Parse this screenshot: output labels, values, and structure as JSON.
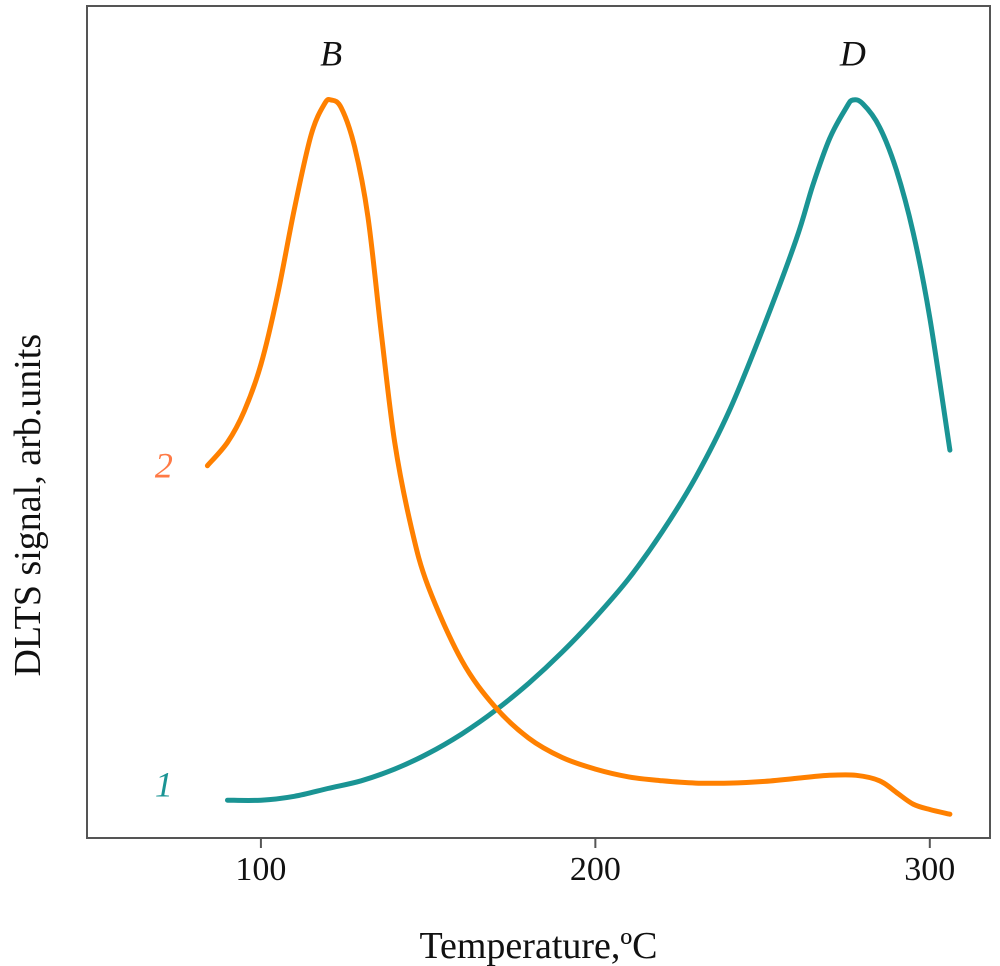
{
  "chart_data": {
    "type": "line",
    "xlabel": "Temperature,ºC",
    "ylabel": "DLTS signal, arb.units",
    "xlim": [
      48,
      318
    ],
    "ylim": [
      0,
      1.0
    ],
    "x_ticks": [
      100,
      200,
      300
    ],
    "y_ticks": [],
    "grid": false,
    "peak_labels": [
      {
        "text": "B",
        "x": 121,
        "y": 1.06
      },
      {
        "text": "D",
        "x": 277,
        "y": 1.06
      }
    ],
    "series": [
      {
        "name": "1",
        "color": "#1a9494",
        "label_pos": {
          "x": 71,
          "y": 0.12
        },
        "points": [
          [
            90,
            0.1
          ],
          [
            100,
            0.1
          ],
          [
            110,
            0.105
          ],
          [
            120,
            0.115
          ],
          [
            130,
            0.125
          ],
          [
            140,
            0.14
          ],
          [
            150,
            0.16
          ],
          [
            160,
            0.185
          ],
          [
            170,
            0.215
          ],
          [
            180,
            0.25
          ],
          [
            190,
            0.29
          ],
          [
            200,
            0.335
          ],
          [
            210,
            0.385
          ],
          [
            220,
            0.445
          ],
          [
            230,
            0.515
          ],
          [
            240,
            0.6
          ],
          [
            250,
            0.705
          ],
          [
            260,
            0.82
          ],
          [
            265,
            0.89
          ],
          [
            270,
            0.95
          ],
          [
            275,
            0.99
          ],
          [
            277,
            1.0
          ],
          [
            280,
            0.995
          ],
          [
            285,
            0.965
          ],
          [
            290,
            0.91
          ],
          [
            295,
            0.83
          ],
          [
            300,
            0.72
          ],
          [
            306,
            0.55
          ]
        ]
      },
      {
        "name": "2",
        "color": "#ff8000",
        "label_color": "#ff7a45",
        "label_pos": {
          "x": 71,
          "y": 0.53
        },
        "points": [
          [
            84,
            0.53
          ],
          [
            90,
            0.56
          ],
          [
            95,
            0.6
          ],
          [
            100,
            0.66
          ],
          [
            105,
            0.75
          ],
          [
            110,
            0.86
          ],
          [
            115,
            0.955
          ],
          [
            119,
            0.995
          ],
          [
            121,
            1.0
          ],
          [
            124,
            0.99
          ],
          [
            128,
            0.94
          ],
          [
            132,
            0.85
          ],
          [
            136,
            0.7
          ],
          [
            140,
            0.56
          ],
          [
            145,
            0.45
          ],
          [
            150,
            0.375
          ],
          [
            160,
            0.28
          ],
          [
            170,
            0.22
          ],
          [
            180,
            0.18
          ],
          [
            190,
            0.155
          ],
          [
            200,
            0.14
          ],
          [
            210,
            0.13
          ],
          [
            220,
            0.125
          ],
          [
            230,
            0.122
          ],
          [
            240,
            0.122
          ],
          [
            250,
            0.124
          ],
          [
            260,
            0.128
          ],
          [
            270,
            0.132
          ],
          [
            278,
            0.132
          ],
          [
            285,
            0.125
          ],
          [
            290,
            0.11
          ],
          [
            295,
            0.095
          ],
          [
            300,
            0.088
          ],
          [
            306,
            0.082
          ]
        ]
      }
    ]
  }
}
